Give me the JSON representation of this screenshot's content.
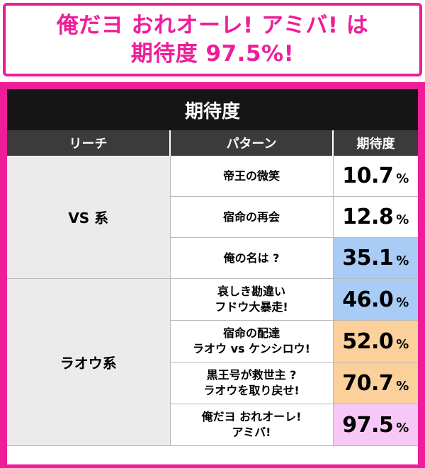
{
  "headline": {
    "line1": "俺だヨ おれオーレ! アミバ! は",
    "line2": "期待度 97.5%!"
  },
  "table": {
    "title": "期待度",
    "headers": [
      "リーチ",
      "パターン",
      "期待度"
    ],
    "percent_sign": "%",
    "groups": [
      {
        "reach": "VS 系",
        "rows": [
          {
            "pattern": [
              "帝王の微笑"
            ],
            "value": "10.7",
            "color": "#ffffff"
          },
          {
            "pattern": [
              "宿命の再会"
            ],
            "value": "12.8",
            "color": "#ffffff"
          },
          {
            "pattern": [
              "俺の名は ?"
            ],
            "value": "35.1",
            "color": "#a8ccf5"
          }
        ]
      },
      {
        "reach": "ラオウ系",
        "rows": [
          {
            "pattern": [
              "哀しき勘違い",
              "フドウ大暴走!"
            ],
            "value": "46.0",
            "color": "#a8ccf5"
          },
          {
            "pattern": [
              "宿命の配達",
              "ラオウ vs ケンシロウ!"
            ],
            "value": "52.0",
            "color": "#fbd09a"
          },
          {
            "pattern": [
              "黒王号が救世主 ?",
              "ラオウを取り戻せ!"
            ],
            "value": "70.7",
            "color": "#fbd09a"
          },
          {
            "pattern": [
              "俺だヨ おれオーレ!",
              "アミバ!"
            ],
            "value": "97.5",
            "color": "#f7c8f7"
          }
        ]
      }
    ]
  },
  "colors": {
    "accent": "#ee1e9a",
    "title_bg": "#151515",
    "header_bg": "#3b3b3b",
    "reach_bg": "#ebebeb"
  }
}
